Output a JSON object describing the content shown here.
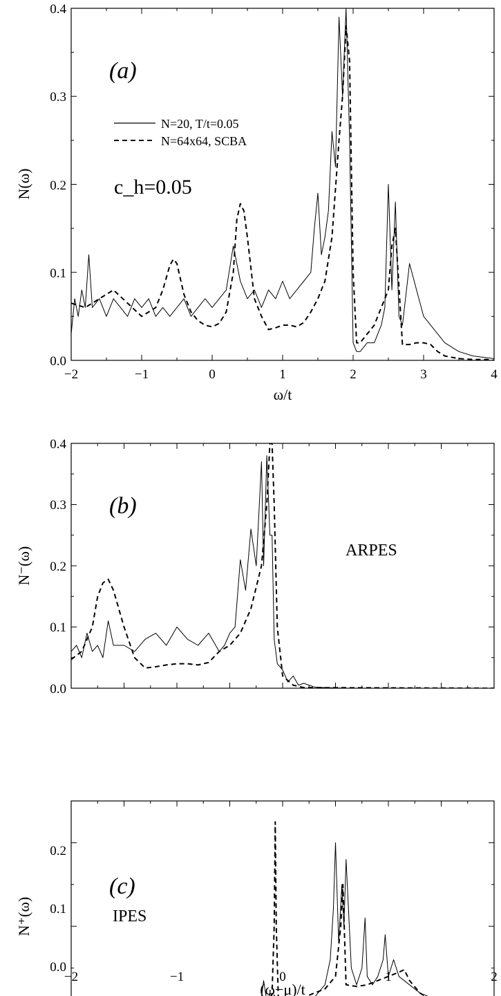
{
  "chart_data": [
    {
      "type": "line",
      "panel_label": "(a)",
      "xlabel": "ω/t",
      "ylabel": "N(ω)",
      "xlim": [
        -2,
        4
      ],
      "ylim": [
        0,
        0.4
      ],
      "xticks": [
        "−2",
        "−1",
        "0",
        "1",
        "2",
        "3",
        "4"
      ],
      "yticks": [
        "0.0",
        "0.1",
        "0.2",
        "0.3",
        "0.4"
      ],
      "annotation": "c_h=0.05",
      "legend_placement": "top-left",
      "series": [
        {
          "name": "N=20, T/t=0.05",
          "style": "solid",
          "x": [
            -2.0,
            -1.95,
            -1.9,
            -1.85,
            -1.8,
            -1.75,
            -1.7,
            -1.6,
            -1.5,
            -1.4,
            -1.3,
            -1.2,
            -1.1,
            -1.0,
            -0.9,
            -0.8,
            -0.7,
            -0.6,
            -0.5,
            -0.4,
            -0.3,
            -0.2,
            -0.1,
            0.0,
            0.1,
            0.2,
            0.3,
            0.4,
            0.5,
            0.6,
            0.7,
            0.8,
            0.9,
            1.0,
            1.1,
            1.2,
            1.3,
            1.4,
            1.45,
            1.5,
            1.55,
            1.6,
            1.65,
            1.7,
            1.75,
            1.8,
            1.85,
            1.9,
            1.95,
            2.0,
            2.05,
            2.1,
            2.2,
            2.3,
            2.4,
            2.45,
            2.5,
            2.55,
            2.6,
            2.65,
            2.7,
            2.8,
            2.9,
            3.0,
            3.1,
            3.2,
            3.3,
            3.5,
            3.7,
            3.9,
            4.0
          ],
          "y": [
            0.03,
            0.07,
            0.05,
            0.08,
            0.06,
            0.12,
            0.06,
            0.07,
            0.05,
            0.07,
            0.06,
            0.05,
            0.07,
            0.06,
            0.07,
            0.05,
            0.06,
            0.05,
            0.06,
            0.07,
            0.05,
            0.06,
            0.07,
            0.06,
            0.07,
            0.08,
            0.13,
            0.09,
            0.07,
            0.08,
            0.06,
            0.08,
            0.07,
            0.09,
            0.07,
            0.08,
            0.09,
            0.1,
            0.15,
            0.19,
            0.12,
            0.14,
            0.17,
            0.26,
            0.22,
            0.39,
            0.3,
            0.4,
            0.25,
            0.02,
            0.01,
            0.01,
            0.02,
            0.02,
            0.04,
            0.06,
            0.2,
            0.08,
            0.18,
            0.05,
            0.04,
            0.11,
            0.08,
            0.05,
            0.04,
            0.03,
            0.02,
            0.01,
            0.005,
            0.003,
            0.002
          ]
        },
        {
          "name": "N=64x64, SCBA",
          "style": "dashed",
          "x": [
            -2.0,
            -1.8,
            -1.6,
            -1.4,
            -1.2,
            -1.0,
            -0.8,
            -0.7,
            -0.6,
            -0.55,
            -0.5,
            -0.4,
            -0.3,
            -0.2,
            -0.1,
            0.0,
            0.1,
            0.2,
            0.3,
            0.35,
            0.4,
            0.45,
            0.5,
            0.6,
            0.7,
            0.8,
            0.9,
            1.0,
            1.1,
            1.2,
            1.3,
            1.4,
            1.5,
            1.6,
            1.7,
            1.8,
            1.85,
            1.9,
            1.95,
            2.0,
            2.05,
            2.1,
            2.2,
            2.3,
            2.4,
            2.5,
            2.55,
            2.6,
            2.7,
            2.8,
            2.9,
            3.0,
            3.1,
            3.2,
            3.3,
            3.5,
            3.7,
            3.9,
            4.0
          ],
          "y": [
            0.065,
            0.06,
            0.07,
            0.08,
            0.065,
            0.05,
            0.06,
            0.08,
            0.108,
            0.115,
            0.11,
            0.075,
            0.055,
            0.045,
            0.04,
            0.038,
            0.042,
            0.055,
            0.1,
            0.16,
            0.178,
            0.17,
            0.14,
            0.07,
            0.05,
            0.035,
            0.037,
            0.04,
            0.04,
            0.038,
            0.043,
            0.055,
            0.07,
            0.09,
            0.14,
            0.25,
            0.3,
            0.38,
            0.34,
            0.1,
            0.02,
            0.02,
            0.03,
            0.04,
            0.06,
            0.08,
            0.13,
            0.15,
            0.018,
            0.018,
            0.02,
            0.02,
            0.018,
            0.01,
            0.005,
            0.002,
            0.001,
            0.001,
            0.0
          ]
        }
      ]
    },
    {
      "type": "line",
      "panel_label": "(b)",
      "ylabel": "N⁻(ω)",
      "annotation": "ARPES",
      "xlim": [
        -2,
        2
      ],
      "ylim": [
        0,
        0.4
      ],
      "yticks": [
        "0.0",
        "0.1",
        "0.2",
        "0.3",
        "0.4"
      ],
      "series": [
        {
          "style": "solid",
          "x": [
            -2.0,
            -1.95,
            -1.9,
            -1.85,
            -1.8,
            -1.75,
            -1.7,
            -1.65,
            -1.6,
            -1.5,
            -1.4,
            -1.3,
            -1.2,
            -1.1,
            -1.0,
            -0.9,
            -0.8,
            -0.7,
            -0.6,
            -0.55,
            -0.5,
            -0.45,
            -0.4,
            -0.35,
            -0.3,
            -0.25,
            -0.2,
            -0.18,
            -0.15,
            -0.12,
            -0.1,
            -0.08,
            -0.05,
            0.0,
            0.05,
            0.1,
            0.15,
            0.2,
            0.3,
            0.4,
            0.6,
            2.0
          ],
          "y": [
            0.06,
            0.07,
            0.05,
            0.09,
            0.06,
            0.07,
            0.05,
            0.11,
            0.07,
            0.07,
            0.06,
            0.08,
            0.09,
            0.07,
            0.1,
            0.08,
            0.07,
            0.09,
            0.06,
            0.07,
            0.09,
            0.1,
            0.21,
            0.16,
            0.26,
            0.2,
            0.37,
            0.2,
            0.38,
            0.25,
            0.25,
            0.08,
            0.04,
            0.03,
            0.01,
            0.02,
            0.005,
            0.008,
            0.002,
            0.001,
            0.0,
            0.0
          ]
        },
        {
          "style": "dashed",
          "x": [
            -2.0,
            -1.9,
            -1.8,
            -1.75,
            -1.7,
            -1.65,
            -1.6,
            -1.5,
            -1.4,
            -1.3,
            -1.2,
            -1.1,
            -1.0,
            -0.9,
            -0.8,
            -0.7,
            -0.6,
            -0.5,
            -0.4,
            -0.3,
            -0.2,
            -0.15,
            -0.12,
            -0.1,
            -0.08,
            -0.05,
            0.0,
            0.1,
            0.2,
            2.0
          ],
          "y": [
            0.047,
            0.06,
            0.1,
            0.15,
            0.172,
            0.178,
            0.16,
            0.1,
            0.05,
            0.033,
            0.035,
            0.038,
            0.04,
            0.04,
            0.038,
            0.042,
            0.06,
            0.07,
            0.09,
            0.13,
            0.2,
            0.3,
            0.4,
            0.4,
            0.3,
            0.1,
            0.02,
            0.005,
            0.001,
            0.0
          ]
        }
      ]
    },
    {
      "type": "line",
      "panel_label": "(c)",
      "xlabel": "(ω−μ)/t",
      "ylabel": "N⁺(ω)",
      "annotation": "IPES",
      "xlim": [
        -2,
        2
      ],
      "ylim": [
        0,
        0.25
      ],
      "xticks": [
        "−2",
        "−1",
        "0",
        "1",
        "2"
      ],
      "yticks": [
        "0.0",
        "0.1",
        "0.2"
      ],
      "series": [
        {
          "style": "solid",
          "x": [
            -2.0,
            -0.3,
            -0.25,
            -0.2,
            -0.18,
            -0.15,
            -0.12,
            -0.1,
            -0.08,
            -0.05,
            0.0,
            0.1,
            0.2,
            0.3,
            0.4,
            0.45,
            0.48,
            0.5,
            0.53,
            0.56,
            0.58,
            0.6,
            0.65,
            0.7,
            0.75,
            0.78,
            0.8,
            0.85,
            0.9,
            0.95,
            0.97,
            1.0,
            1.05,
            1.1,
            1.2,
            1.3,
            1.4,
            1.6,
            1.8,
            2.0
          ],
          "y": [
            0.0,
            0.0,
            0.005,
            0.015,
            0.035,
            0.01,
            0.02,
            0.005,
            0.018,
            0.005,
            0.01,
            0.005,
            0.01,
            0.015,
            0.03,
            0.06,
            0.12,
            0.2,
            0.08,
            0.15,
            0.1,
            0.18,
            0.05,
            0.03,
            0.05,
            0.11,
            0.04,
            0.03,
            0.04,
            0.06,
            0.09,
            0.04,
            0.06,
            0.04,
            0.03,
            0.02,
            0.015,
            0.01,
            0.005,
            0.002
          ]
        },
        {
          "style": "dashed",
          "x": [
            -2.0,
            -0.3,
            -0.2,
            -0.12,
            -0.1,
            -0.08,
            -0.07,
            -0.06,
            -0.04,
            0.0,
            0.1,
            0.2,
            0.3,
            0.4,
            0.5,
            0.55,
            0.57,
            0.6,
            0.7,
            0.8,
            0.9,
            1.0,
            1.1,
            1.15,
            1.2,
            1.3,
            1.4,
            1.6,
            1.8,
            1.9,
            2.0
          ],
          "y": [
            0.0,
            0.0,
            0.002,
            0.005,
            0.02,
            0.1,
            0.225,
            0.1,
            0.01,
            0.005,
            0.01,
            0.015,
            0.02,
            0.025,
            0.04,
            0.1,
            0.15,
            0.03,
            0.028,
            0.03,
            0.035,
            0.04,
            0.045,
            0.048,
            0.035,
            0.02,
            0.012,
            0.01,
            0.008,
            0.005,
            0.003
          ]
        }
      ]
    }
  ]
}
